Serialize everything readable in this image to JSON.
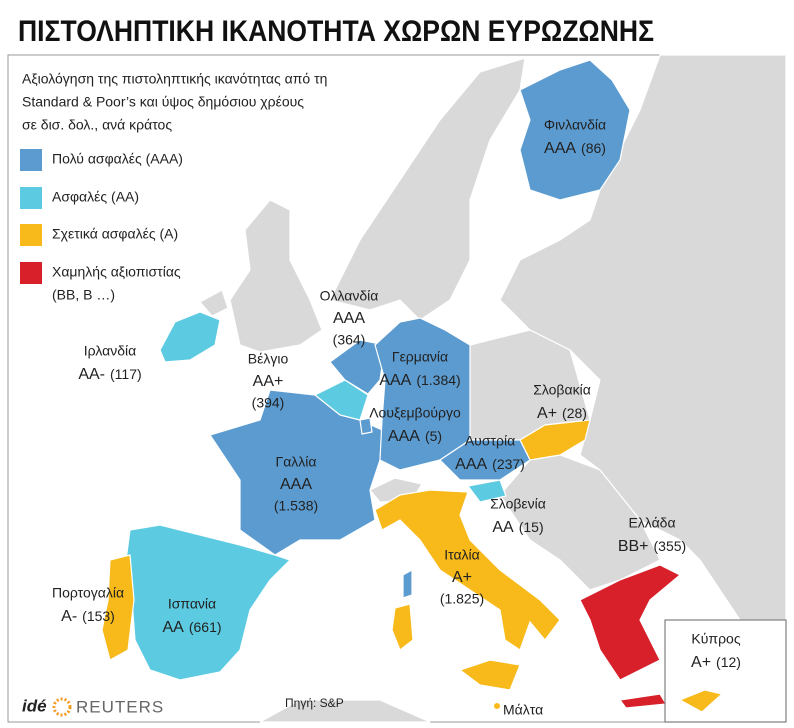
{
  "title": "ΠΙΣΤΟΛΗΠΤΙΚΗ ΙΚΑΝΟΤΗΤΑ ΧΩΡΩΝ ΕΥΡΩΖΩΝΗΣ",
  "subtitle": [
    "Αξιολόγηση της πιστοληπτικής ικανότητας από τη",
    "Standard & Poor’s και ύψος δημόσιου χρέους",
    "σε δισ. δολ., ανά κράτος"
  ],
  "legend": [
    {
      "lines": [
        "Πολύ ασφαλές (AAA)"
      ],
      "color": "#5b9bd0"
    },
    {
      "lines": [
        "Ασφαλές (AA)"
      ],
      "color": "#5ccbe2"
    },
    {
      "lines": [
        "Σχετικά ασφαλές (A)"
      ],
      "color": "#f8b91a"
    },
    {
      "lines": [
        "Χαμηλής αξιοπιστίας",
        "(BB, B …)"
      ],
      "color": "#d7202a"
    }
  ],
  "countries": [
    {
      "name": "Φινλανδία",
      "rating": "AAA",
      "debt": "(86)",
      "color": "#5b9bd0"
    },
    {
      "name": "Ολλανδία",
      "rating": "AAA",
      "debt": "(364)",
      "color": "#5b9bd0"
    },
    {
      "name": "Ιρλανδία",
      "rating": "AA-",
      "debt": "(117)",
      "color": "#5ccbe2"
    },
    {
      "name": "Βέλγιο",
      "rating": "AA+",
      "debt": "(394)",
      "color": "#5ccbe2"
    },
    {
      "name": "Γερμανία",
      "rating": "AAA",
      "debt": "(1.384)",
      "color": "#5b9bd0"
    },
    {
      "name": "Λουξεμβούργο",
      "rating": "AAA",
      "debt": "(5)",
      "color": "#5b9bd0"
    },
    {
      "name": "Σλοβακία",
      "rating": "A+",
      "debt": "(28)",
      "color": "#f8b91a"
    },
    {
      "name": "Αυστρία",
      "rating": "AAA",
      "debt": "(237)",
      "color": "#5b9bd0"
    },
    {
      "name": "Γαλλία",
      "rating": "AAA",
      "debt": "(1.538)",
      "color": "#5b9bd0"
    },
    {
      "name": "Σλοβενία",
      "rating": "AA",
      "debt": "(15)",
      "color": "#5ccbe2"
    },
    {
      "name": "Ελλάδα",
      "rating": "BB+",
      "debt": "(355)",
      "color": "#d7202a"
    },
    {
      "name": "Ιταλία",
      "rating": "A+",
      "debt": "(1.825)",
      "color": "#f8b91a"
    },
    {
      "name": "Πορτογαλία",
      "rating": "A-",
      "debt": "(153)",
      "color": "#f8b91a"
    },
    {
      "name": "Ισπανία",
      "rating": "AA",
      "debt": "(661)",
      "color": "#5ccbe2"
    },
    {
      "name": "Κύπρος",
      "rating": "A+",
      "debt": "(12)",
      "color": "#f8b91a"
    }
  ],
  "malta": "Μάλτα",
  "footer": {
    "logo_ide": "idé",
    "logo_reuters": "REUTERS",
    "source": "Πηγή: S&P"
  }
}
